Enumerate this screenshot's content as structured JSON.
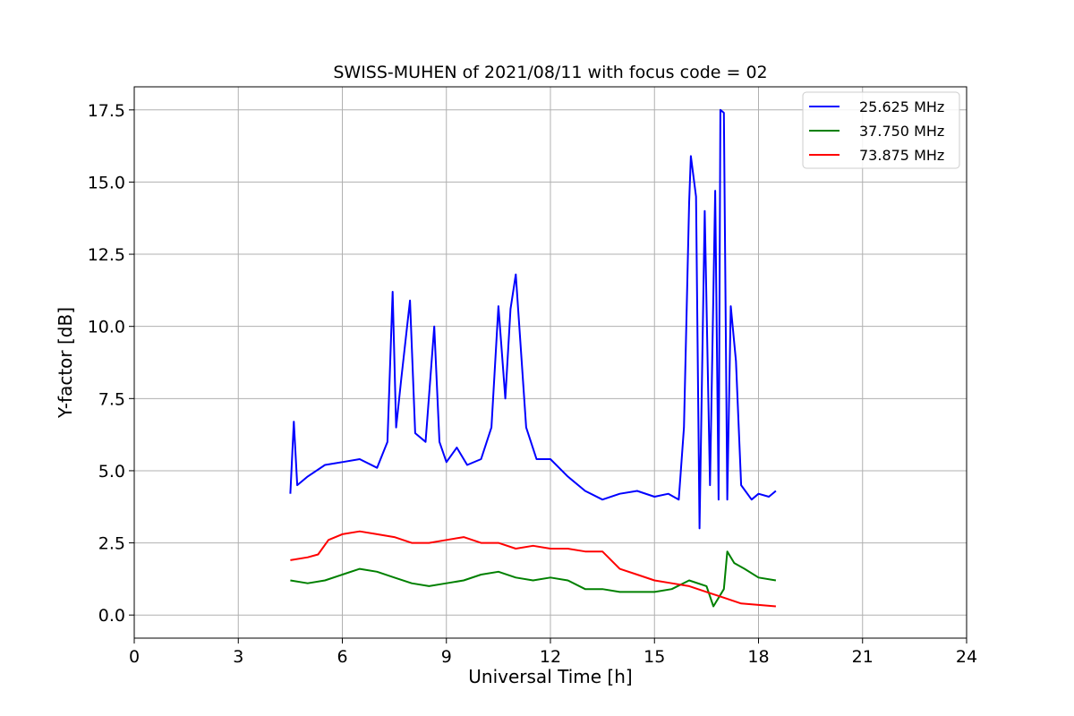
{
  "chart_data": {
    "type": "line",
    "title": "SWISS-MUHEN of 2021/08/11 with focus code = 02",
    "xlabel": "Universal Time [h]",
    "ylabel": "Y-factor [dB]",
    "xlim": [
      0,
      24
    ],
    "ylim": [
      -0.8,
      18.3
    ],
    "xticks": [
      0,
      3,
      6,
      9,
      12,
      15,
      18,
      21,
      24
    ],
    "xtick_labels": [
      "0",
      "3",
      "6",
      "9",
      "12",
      "15",
      "18",
      "21",
      "24"
    ],
    "yticks": [
      0,
      2.5,
      5,
      7.5,
      10,
      12.5,
      15,
      17.5
    ],
    "ytick_labels": [
      "0.0",
      "2.5",
      "5.0",
      "7.5",
      "10.0",
      "12.5",
      "15.0",
      "17.5"
    ],
    "grid": true,
    "legend_position": "top-right",
    "series": [
      {
        "name": "25.625 MHz",
        "color": "#0000ff",
        "x": [
          4.5,
          4.6,
          4.7,
          5.0,
          5.5,
          6.0,
          6.5,
          7.0,
          7.3,
          7.45,
          7.55,
          7.7,
          7.95,
          8.1,
          8.4,
          8.65,
          8.8,
          9.0,
          9.3,
          9.6,
          10.0,
          10.3,
          10.5,
          10.7,
          10.85,
          11.0,
          11.3,
          11.6,
          12.0,
          12.5,
          13.0,
          13.5,
          14.0,
          14.5,
          15.0,
          15.4,
          15.7,
          15.85,
          16.0,
          16.05,
          16.2,
          16.3,
          16.45,
          16.6,
          16.75,
          16.85,
          16.9,
          17.0,
          17.1,
          17.2,
          17.35,
          17.5,
          17.8,
          18.0,
          18.3,
          18.5
        ],
        "y": [
          4.2,
          6.7,
          4.5,
          4.8,
          5.2,
          5.3,
          5.4,
          5.1,
          6.0,
          11.2,
          6.5,
          8.2,
          10.9,
          6.3,
          6.0,
          10.0,
          6.0,
          5.3,
          5.8,
          5.2,
          5.4,
          6.5,
          10.7,
          7.5,
          10.6,
          11.8,
          6.5,
          5.4,
          5.4,
          4.8,
          4.3,
          4.0,
          4.2,
          4.3,
          4.1,
          4.2,
          4.0,
          6.5,
          14.3,
          15.9,
          14.5,
          3.0,
          14.0,
          4.5,
          14.7,
          4.0,
          17.5,
          17.4,
          4.0,
          10.7,
          8.8,
          4.5,
          4.0,
          4.2,
          4.1,
          4.3
        ]
      },
      {
        "name": "37.750 MHz",
        "color": "#008000",
        "x": [
          4.5,
          5.0,
          5.5,
          6.0,
          6.5,
          7.0,
          7.5,
          8.0,
          8.5,
          9.0,
          9.5,
          10.0,
          10.5,
          11.0,
          11.5,
          12.0,
          12.5,
          13.0,
          13.5,
          14.0,
          14.5,
          15.0,
          15.5,
          16.0,
          16.5,
          16.7,
          17.0,
          17.1,
          17.3,
          17.6,
          18.0,
          18.5
        ],
        "y": [
          1.2,
          1.1,
          1.2,
          1.4,
          1.6,
          1.5,
          1.3,
          1.1,
          1.0,
          1.1,
          1.2,
          1.4,
          1.5,
          1.3,
          1.2,
          1.3,
          1.2,
          0.9,
          0.9,
          0.8,
          0.8,
          0.8,
          0.9,
          1.2,
          1.0,
          0.3,
          0.9,
          2.2,
          1.8,
          1.6,
          1.3,
          1.2
        ]
      },
      {
        "name": "73.875 MHz",
        "color": "#ff0000",
        "x": [
          4.5,
          5.0,
          5.3,
          5.6,
          6.0,
          6.5,
          7.0,
          7.5,
          8.0,
          8.5,
          9.0,
          9.5,
          10.0,
          10.5,
          11.0,
          11.5,
          12.0,
          12.5,
          13.0,
          13.5,
          14.0,
          14.5,
          15.0,
          15.5,
          16.0,
          16.5,
          17.0,
          17.5,
          18.0,
          18.5
        ],
        "y": [
          1.9,
          2.0,
          2.1,
          2.6,
          2.8,
          2.9,
          2.8,
          2.7,
          2.5,
          2.5,
          2.6,
          2.7,
          2.5,
          2.5,
          2.3,
          2.4,
          2.3,
          2.3,
          2.2,
          2.2,
          1.6,
          1.4,
          1.2,
          1.1,
          1.0,
          0.8,
          0.6,
          0.4,
          0.35,
          0.3
        ]
      }
    ]
  }
}
